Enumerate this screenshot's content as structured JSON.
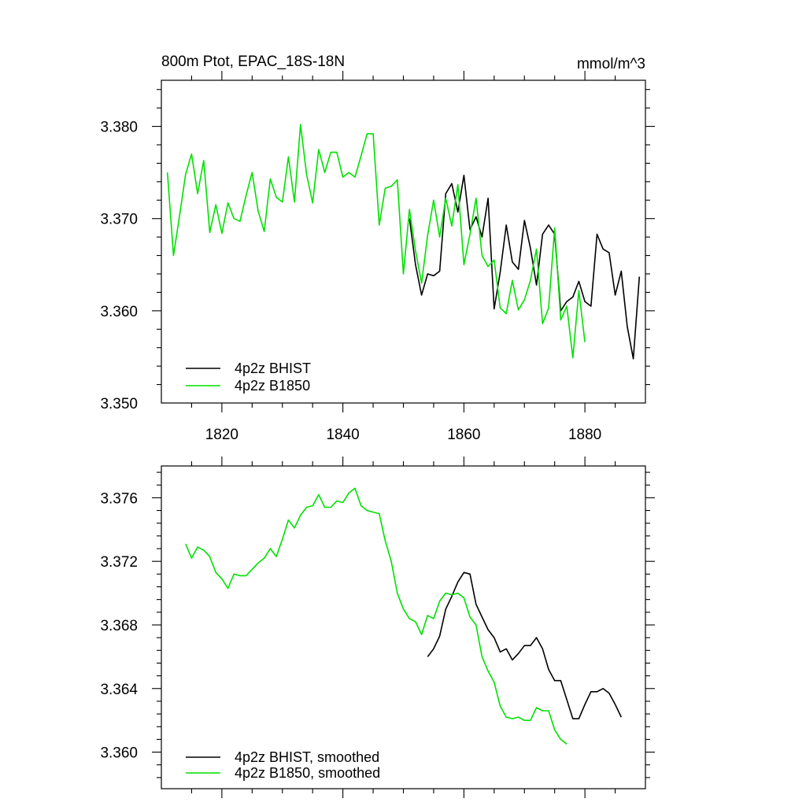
{
  "figure": {
    "title_left": "800m Ptot, EPAC_18S-18N",
    "title_right": "mmol/m^3"
  },
  "colors": {
    "bhist": "#000000",
    "b1850": "#00e000"
  },
  "chart_data": [
    {
      "type": "line",
      "title": "800m Ptot, EPAC_18S-18N",
      "units": "mmol/m^3",
      "xlim": [
        1810,
        1890
      ],
      "ylim": [
        3.35,
        3.385
      ],
      "x_ticks": [
        1820,
        1840,
        1860,
        1880
      ],
      "x_tick_labels": [
        "1820",
        "1840",
        "1860",
        "1880"
      ],
      "y_ticks": [
        3.35,
        3.36,
        3.37,
        3.38
      ],
      "y_tick_labels": [
        "3.350",
        "3.360",
        "3.370",
        "3.380"
      ],
      "grid": false,
      "legend_position": "bottom-left",
      "series": [
        {
          "name": "4p2z BHIST",
          "color": "#000000",
          "x": [
            1851,
            1852,
            1853,
            1854,
            1855,
            1856,
            1857,
            1858,
            1859,
            1860,
            1861,
            1862,
            1863,
            1864,
            1865,
            1866,
            1867,
            1868,
            1869,
            1870,
            1871,
            1872,
            1873,
            1874,
            1875,
            1876,
            1877,
            1878,
            1879,
            1880,
            1881,
            1882,
            1883,
            1884,
            1885,
            1886,
            1887,
            1888,
            1889
          ],
          "y": [
            3.37,
            3.365,
            3.3617,
            3.364,
            3.3638,
            3.3643,
            3.3727,
            3.3738,
            3.3707,
            3.3747,
            3.3688,
            3.3702,
            3.368,
            3.3722,
            3.3602,
            3.3642,
            3.3693,
            3.3653,
            3.3645,
            3.3698,
            3.3668,
            3.3628,
            3.3683,
            3.3693,
            3.3683,
            3.36,
            3.361,
            3.3615,
            3.3632,
            3.361,
            3.3605,
            3.3683,
            3.3667,
            3.3663,
            3.3617,
            3.3643,
            3.3583,
            3.3548,
            3.3637
          ]
        },
        {
          "name": "4p2z B1850",
          "color": "#00e000",
          "x": [
            1811,
            1812,
            1813,
            1814,
            1815,
            1816,
            1817,
            1818,
            1819,
            1820,
            1821,
            1822,
            1823,
            1824,
            1825,
            1826,
            1827,
            1828,
            1829,
            1830,
            1831,
            1832,
            1833,
            1834,
            1835,
            1836,
            1837,
            1838,
            1839,
            1840,
            1841,
            1842,
            1843,
            1844,
            1845,
            1846,
            1847,
            1848,
            1849,
            1850,
            1851,
            1852,
            1853,
            1854,
            1855,
            1856,
            1857,
            1858,
            1859,
            1860,
            1861,
            1862,
            1863,
            1864,
            1865,
            1866,
            1867,
            1868,
            1869,
            1870,
            1871,
            1872,
            1873,
            1874,
            1875,
            1876,
            1877,
            1878,
            1879,
            1880
          ],
          "y": [
            3.375,
            3.366,
            3.3703,
            3.3748,
            3.377,
            3.3727,
            3.3763,
            3.3685,
            3.3715,
            3.3684,
            3.3717,
            3.37,
            3.3697,
            3.3725,
            3.375,
            3.3708,
            3.3686,
            3.3743,
            3.3723,
            3.3718,
            3.3767,
            3.3718,
            3.3802,
            3.3748,
            3.3717,
            3.3775,
            3.375,
            3.3772,
            3.3772,
            3.3745,
            3.375,
            3.3745,
            3.3768,
            3.3792,
            3.3792,
            3.3693,
            3.3733,
            3.3735,
            3.3742,
            3.364,
            3.371,
            3.3665,
            3.363,
            3.3682,
            3.372,
            3.368,
            3.3722,
            3.3692,
            3.3737,
            3.365,
            3.3683,
            3.3722,
            3.366,
            3.3648,
            3.3655,
            3.3603,
            3.3597,
            3.3633,
            3.3601,
            3.3612,
            3.3633,
            3.3667,
            3.3586,
            3.3603,
            3.369,
            3.359,
            3.3605,
            3.3549,
            3.3622,
            3.3566
          ]
        }
      ]
    },
    {
      "type": "line",
      "xlim": [
        1810,
        1890
      ],
      "ylim": [
        3.3577,
        3.378
      ],
      "x_ticks": [
        1820,
        1840,
        1860,
        1880
      ],
      "x_tick_labels": [
        "",
        "",
        "",
        ""
      ],
      "y_ticks": [
        3.36,
        3.364,
        3.368,
        3.372,
        3.376
      ],
      "y_tick_labels": [
        "3.360",
        "3.364",
        "3.368",
        "3.372",
        "3.376"
      ],
      "grid": false,
      "legend_position": "bottom-left",
      "series": [
        {
          "name": "4p2z BHIST, smoothed",
          "color": "#000000",
          "x": [
            1854,
            1855,
            1856,
            1857,
            1858,
            1859,
            1860,
            1861,
            1862,
            1863,
            1864,
            1865,
            1866,
            1867,
            1868,
            1869,
            1870,
            1871,
            1872,
            1873,
            1874,
            1875,
            1876,
            1877,
            1878,
            1879,
            1880,
            1881,
            1882,
            1883,
            1884,
            1885,
            1886
          ],
          "y": [
            3.366,
            3.3665,
            3.3673,
            3.369,
            3.3698,
            3.3707,
            3.3713,
            3.3712,
            3.3693,
            3.3685,
            3.3677,
            3.3672,
            3.3663,
            3.3665,
            3.3658,
            3.3662,
            3.3667,
            3.3667,
            3.3672,
            3.3665,
            3.3652,
            3.3645,
            3.3645,
            3.3633,
            3.3621,
            3.3621,
            3.363,
            3.3638,
            3.3638,
            3.364,
            3.3637,
            3.363,
            3.3622
          ]
        },
        {
          "name": "4p2z B1850, smoothed",
          "color": "#00e000",
          "x": [
            1814,
            1815,
            1816,
            1817,
            1818,
            1819,
            1820,
            1821,
            1822,
            1823,
            1824,
            1825,
            1826,
            1827,
            1828,
            1829,
            1830,
            1831,
            1832,
            1833,
            1834,
            1835,
            1836,
            1837,
            1838,
            1839,
            1840,
            1841,
            1842,
            1843,
            1844,
            1845,
            1846,
            1847,
            1848,
            1849,
            1850,
            1851,
            1852,
            1853,
            1854,
            1855,
            1856,
            1857,
            1858,
            1859,
            1860,
            1861,
            1862,
            1863,
            1864,
            1865,
            1866,
            1867,
            1868,
            1869,
            1870,
            1871,
            1872,
            1873,
            1874,
            1875,
            1876,
            1877
          ],
          "y": [
            3.3731,
            3.3722,
            3.3729,
            3.3727,
            3.3723,
            3.3713,
            3.3709,
            3.3703,
            3.3712,
            3.3711,
            3.3711,
            3.3715,
            3.3719,
            3.3722,
            3.3728,
            3.3723,
            3.3734,
            3.3746,
            3.3741,
            3.3749,
            3.3754,
            3.3755,
            3.3762,
            3.3754,
            3.3754,
            3.3758,
            3.3757,
            3.3763,
            3.3766,
            3.3755,
            3.3752,
            3.3751,
            3.375,
            3.3733,
            3.372,
            3.37,
            3.369,
            3.3684,
            3.3682,
            3.3674,
            3.3686,
            3.3684,
            3.3695,
            3.37,
            3.3699,
            3.37,
            3.3697,
            3.3685,
            3.368,
            3.366,
            3.3651,
            3.3644,
            3.3629,
            3.3622,
            3.3621,
            3.3622,
            3.362,
            3.362,
            3.3628,
            3.3626,
            3.3626,
            3.3614,
            3.3608,
            3.3605
          ]
        }
      ]
    }
  ]
}
